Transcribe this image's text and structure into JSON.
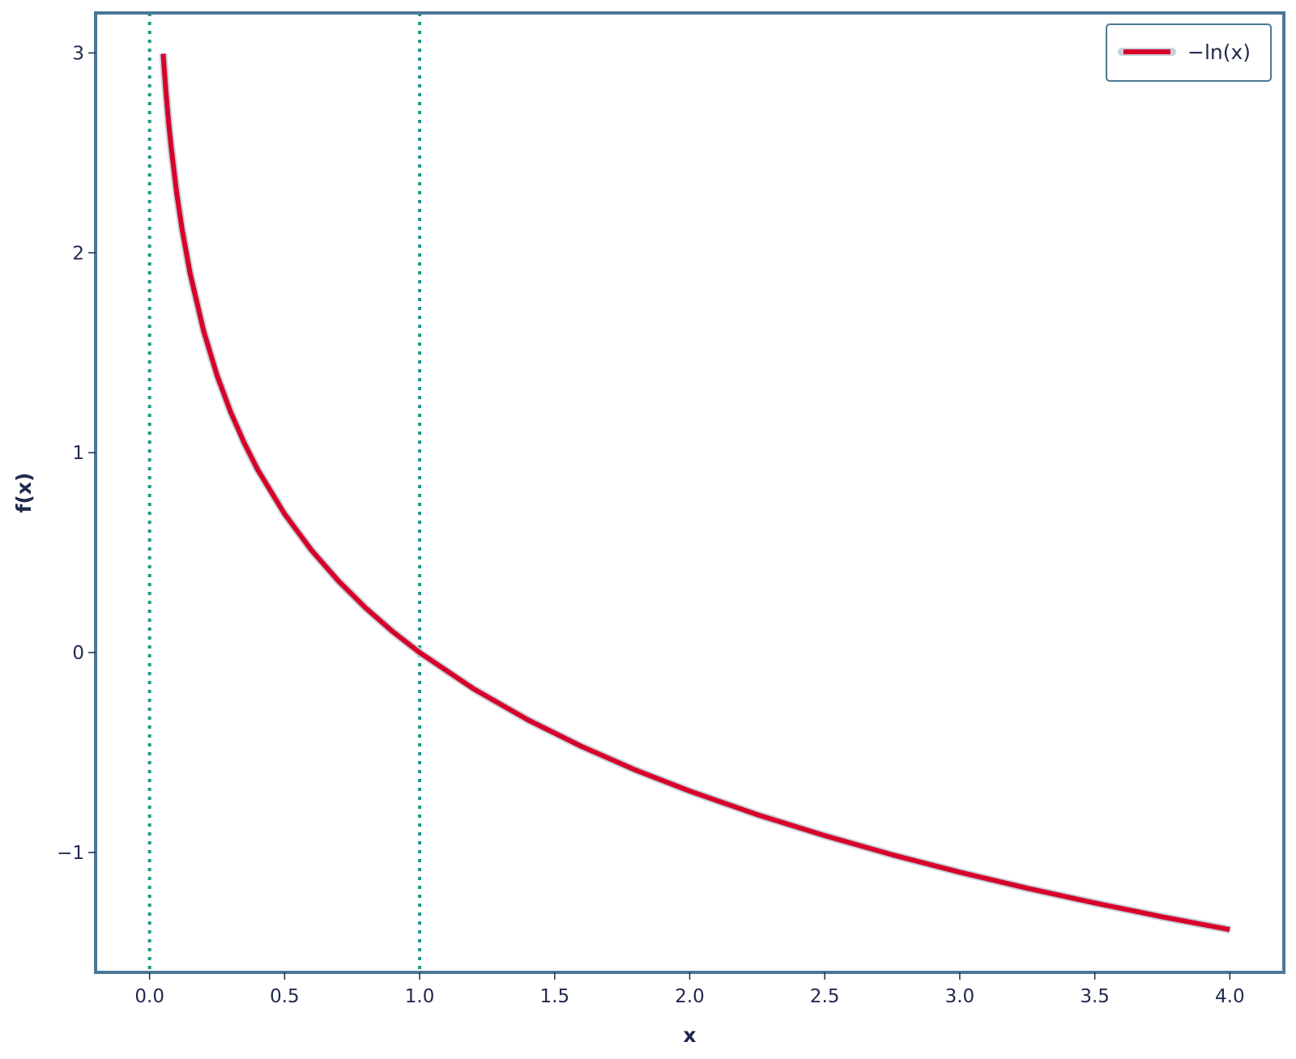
{
  "chart_data": {
    "type": "line",
    "title": "",
    "xlabel": "x",
    "ylabel": "f(x)",
    "xlim": [
      -0.2,
      4.2
    ],
    "ylim": [
      -1.6,
      3.2
    ],
    "x_ticks": [
      0.0,
      0.5,
      1.0,
      1.5,
      2.0,
      2.5,
      3.0,
      3.5,
      4.0
    ],
    "x_tick_labels": [
      "0.0",
      "0.5",
      "1.0",
      "1.5",
      "2.0",
      "2.5",
      "3.0",
      "3.5",
      "4.0"
    ],
    "y_ticks": [
      -1,
      0,
      1,
      2,
      3
    ],
    "y_tick_labels": [
      "−1",
      "0",
      "1",
      "2",
      "3"
    ],
    "grid": false,
    "legend_position": "top-right",
    "series": [
      {
        "name": "−ln(x)",
        "color": "#d7002a",
        "x": [
          0.05,
          0.06,
          0.07,
          0.08,
          0.1,
          0.12,
          0.15,
          0.2,
          0.25,
          0.3,
          0.35,
          0.4,
          0.5,
          0.6,
          0.7,
          0.8,
          0.9,
          1.0,
          1.2,
          1.4,
          1.6,
          1.8,
          2.0,
          2.25,
          2.5,
          2.75,
          3.0,
          3.25,
          3.5,
          3.75,
          4.0
        ],
        "y": [
          2.996,
          2.813,
          2.659,
          2.526,
          2.303,
          2.12,
          1.897,
          1.609,
          1.386,
          1.204,
          1.05,
          0.916,
          0.693,
          0.511,
          0.357,
          0.223,
          0.105,
          0.0,
          -0.182,
          -0.336,
          -0.47,
          -0.588,
          -0.693,
          -0.811,
          -0.916,
          -1.012,
          -1.099,
          -1.179,
          -1.253,
          -1.322,
          -1.386
        ]
      }
    ],
    "reference_lines": [
      {
        "orientation": "vertical",
        "x": 0.0,
        "style": "dotted",
        "color": "#1a9a8a"
      },
      {
        "orientation": "vertical",
        "x": 1.0,
        "style": "dotted",
        "color": "#1a9a8a"
      }
    ],
    "colors": {
      "frame": "#4a7896",
      "text": "#1f2a4d",
      "line": "#d7002a",
      "line_halo": "#c8d0d8",
      "reference": "#1a9a8a"
    }
  }
}
